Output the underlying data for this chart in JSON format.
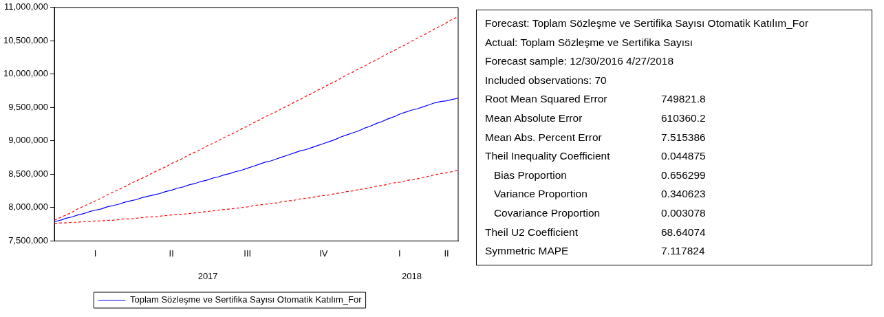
{
  "chart_data": [
    {
      "type": "line",
      "categories": [
        null,
        null,
        null,
        null,
        null,
        null,
        null,
        "I",
        null,
        null,
        null,
        null,
        null,
        null,
        null,
        null,
        null,
        null,
        null,
        null,
        "II",
        null,
        null,
        null,
        null,
        null,
        null,
        null,
        null,
        null,
        null,
        null,
        null,
        "III",
        null,
        null,
        null,
        null,
        null,
        null,
        null,
        null,
        null,
        null,
        null,
        null,
        "IV",
        null,
        null,
        null,
        null,
        null,
        null,
        null,
        null,
        null,
        null,
        null,
        null,
        "I",
        null,
        null,
        null,
        null,
        null,
        null,
        null,
        "II",
        null,
        null
      ],
      "series": [
        {
          "name": "Toplam Sözleşme ve Sertifika Sayısı Otomatik Katılım_For",
          "color": "#0000ff",
          "line_style": "solid",
          "values": [
            7790000,
            7810000,
            7840000,
            7860000,
            7890000,
            7910000,
            7940000,
            7960000,
            7980000,
            8010000,
            8030000,
            8050000,
            8080000,
            8100000,
            8120000,
            8150000,
            8170000,
            8190000,
            8210000,
            8240000,
            8260000,
            8290000,
            8310000,
            8340000,
            8360000,
            8390000,
            8410000,
            8440000,
            8460000,
            8490000,
            8510000,
            8540000,
            8560000,
            8590000,
            8620000,
            8650000,
            8680000,
            8700000,
            8730000,
            8760000,
            8790000,
            8820000,
            8850000,
            8870000,
            8900000,
            8930000,
            8960000,
            8990000,
            9020000,
            9060000,
            9090000,
            9120000,
            9150000,
            9190000,
            9220000,
            9260000,
            9290000,
            9330000,
            9360000,
            9400000,
            9430000,
            9460000,
            9480000,
            9510000,
            9540000,
            9570000,
            9590000,
            9600000,
            9620000,
            9640000
          ]
        },
        {
          "color": "#ff0000",
          "line_style": "dashed",
          "values": [
            7810000,
            7850000,
            7890000,
            7930000,
            7980000,
            8020000,
            8060000,
            8100000,
            8140000,
            8190000,
            8230000,
            8270000,
            8310000,
            8360000,
            8400000,
            8440000,
            8480000,
            8530000,
            8570000,
            8610000,
            8660000,
            8700000,
            8740000,
            8790000,
            8830000,
            8870000,
            8920000,
            8960000,
            9000000,
            9050000,
            9090000,
            9130000,
            9180000,
            9220000,
            9270000,
            9310000,
            9360000,
            9400000,
            9440000,
            9490000,
            9530000,
            9580000,
            9620000,
            9670000,
            9710000,
            9760000,
            9800000,
            9850000,
            9890000,
            9940000,
            9990000,
            10030000,
            10080000,
            10120000,
            10170000,
            10210000,
            10260000,
            10310000,
            10350000,
            10400000,
            10440000,
            10490000,
            10540000,
            10580000,
            10630000,
            10680000,
            10720000,
            10770000,
            10820000,
            10860000
          ]
        },
        {
          "color": "#ff0000",
          "line_style": "dashed",
          "values": [
            7760000,
            7770000,
            7770000,
            7780000,
            7780000,
            7790000,
            7790000,
            7800000,
            7800000,
            7810000,
            7810000,
            7820000,
            7830000,
            7830000,
            7840000,
            7850000,
            7860000,
            7860000,
            7870000,
            7880000,
            7890000,
            7900000,
            7900000,
            7910000,
            7920000,
            7930000,
            7940000,
            7950000,
            7960000,
            7970000,
            7980000,
            7990000,
            8000000,
            8010000,
            8030000,
            8040000,
            8050000,
            8060000,
            8070000,
            8090000,
            8100000,
            8110000,
            8130000,
            8140000,
            8150000,
            8170000,
            8180000,
            8190000,
            8210000,
            8220000,
            8240000,
            8250000,
            8270000,
            8280000,
            8300000,
            8320000,
            8330000,
            8350000,
            8370000,
            8380000,
            8400000,
            8420000,
            8430000,
            8450000,
            8470000,
            8490000,
            8510000,
            8520000,
            8540000,
            8560000
          ]
        }
      ],
      "ylim": [
        7500000,
        11000000
      ],
      "yticks": [
        {
          "value": 7500000,
          "label": "7,500,000"
        },
        {
          "value": 8000000,
          "label": "8,000,000"
        },
        {
          "value": 8500000,
          "label": "8,500,000"
        },
        {
          "value": 9000000,
          "label": "9,000,000"
        },
        {
          "value": 9500000,
          "label": "9,500,000"
        },
        {
          "value": 10000000,
          "label": "10,000,000"
        },
        {
          "value": 10500000,
          "label": "10,500,000"
        },
        {
          "value": 11000000,
          "label": "11,000,000"
        }
      ],
      "annotations": [
        "2017",
        "2018"
      ],
      "grid": false,
      "marker": "none",
      "legend": "bottom"
    },
    {
      "type": "other",
      "annotations": [
        "Forecast: Toplam Sözleşme ve Sertifika Sayısı Otomatik Katılım_For",
        "Actual: Toplam Sözleşme ve Sertifika Sayısı",
        "Forecast sample: 12/30/2016 4/27/2018",
        "Included observations: 70"
      ],
      "categories": [
        "Root Mean Squared Error",
        "Mean Absolute Error",
        "Mean Abs. Percent Error",
        "Theil Inequality Coefficient",
        "   Bias Proportion",
        "   Variance Proportion",
        "   Covariance Proportion",
        "Theil U2 Coefficient",
        "Symmetric MAPE"
      ],
      "value_labels": [
        "749821.8",
        "610360.2",
        "7.515386",
        "0.044875",
        "0.656299",
        "0.340623",
        "0.003078",
        "68.64074",
        "7.117824"
      ]
    }
  ]
}
